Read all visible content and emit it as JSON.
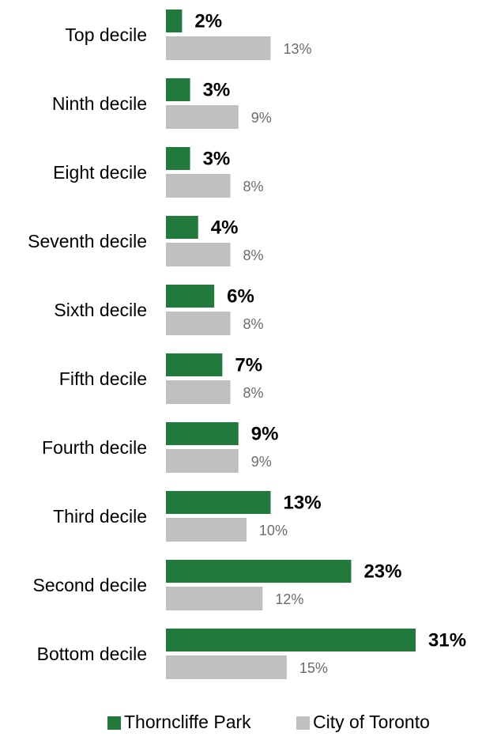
{
  "chart_data": {
    "type": "bar",
    "orientation": "horizontal",
    "categories": [
      "Top decile",
      "Ninth decile",
      "Eight decile",
      "Seventh decile",
      "Sixth decile",
      "Fifth decile",
      "Fourth decile",
      "Third decile",
      "Second decile",
      "Bottom decile"
    ],
    "series": [
      {
        "name": "Thorncliffe Park",
        "color": "#217a3c",
        "values": [
          2,
          3,
          3,
          4,
          6,
          7,
          9,
          13,
          23,
          31
        ],
        "labels": [
          "2%",
          "3%",
          "3%",
          "4%",
          "6%",
          "7%",
          "9%",
          "13%",
          "23%",
          "31%"
        ]
      },
      {
        "name": "City of Toronto",
        "color": "#c0c0c0",
        "values": [
          13,
          9,
          8,
          8,
          8,
          8,
          9,
          10,
          12,
          15
        ],
        "labels": [
          "13%",
          "9%",
          "8%",
          "8%",
          "8%",
          "8%",
          "9%",
          "10%",
          "12%",
          "15%"
        ]
      }
    ],
    "xlim": [
      0,
      31
    ],
    "legend_position": "bottom",
    "grid": false
  }
}
